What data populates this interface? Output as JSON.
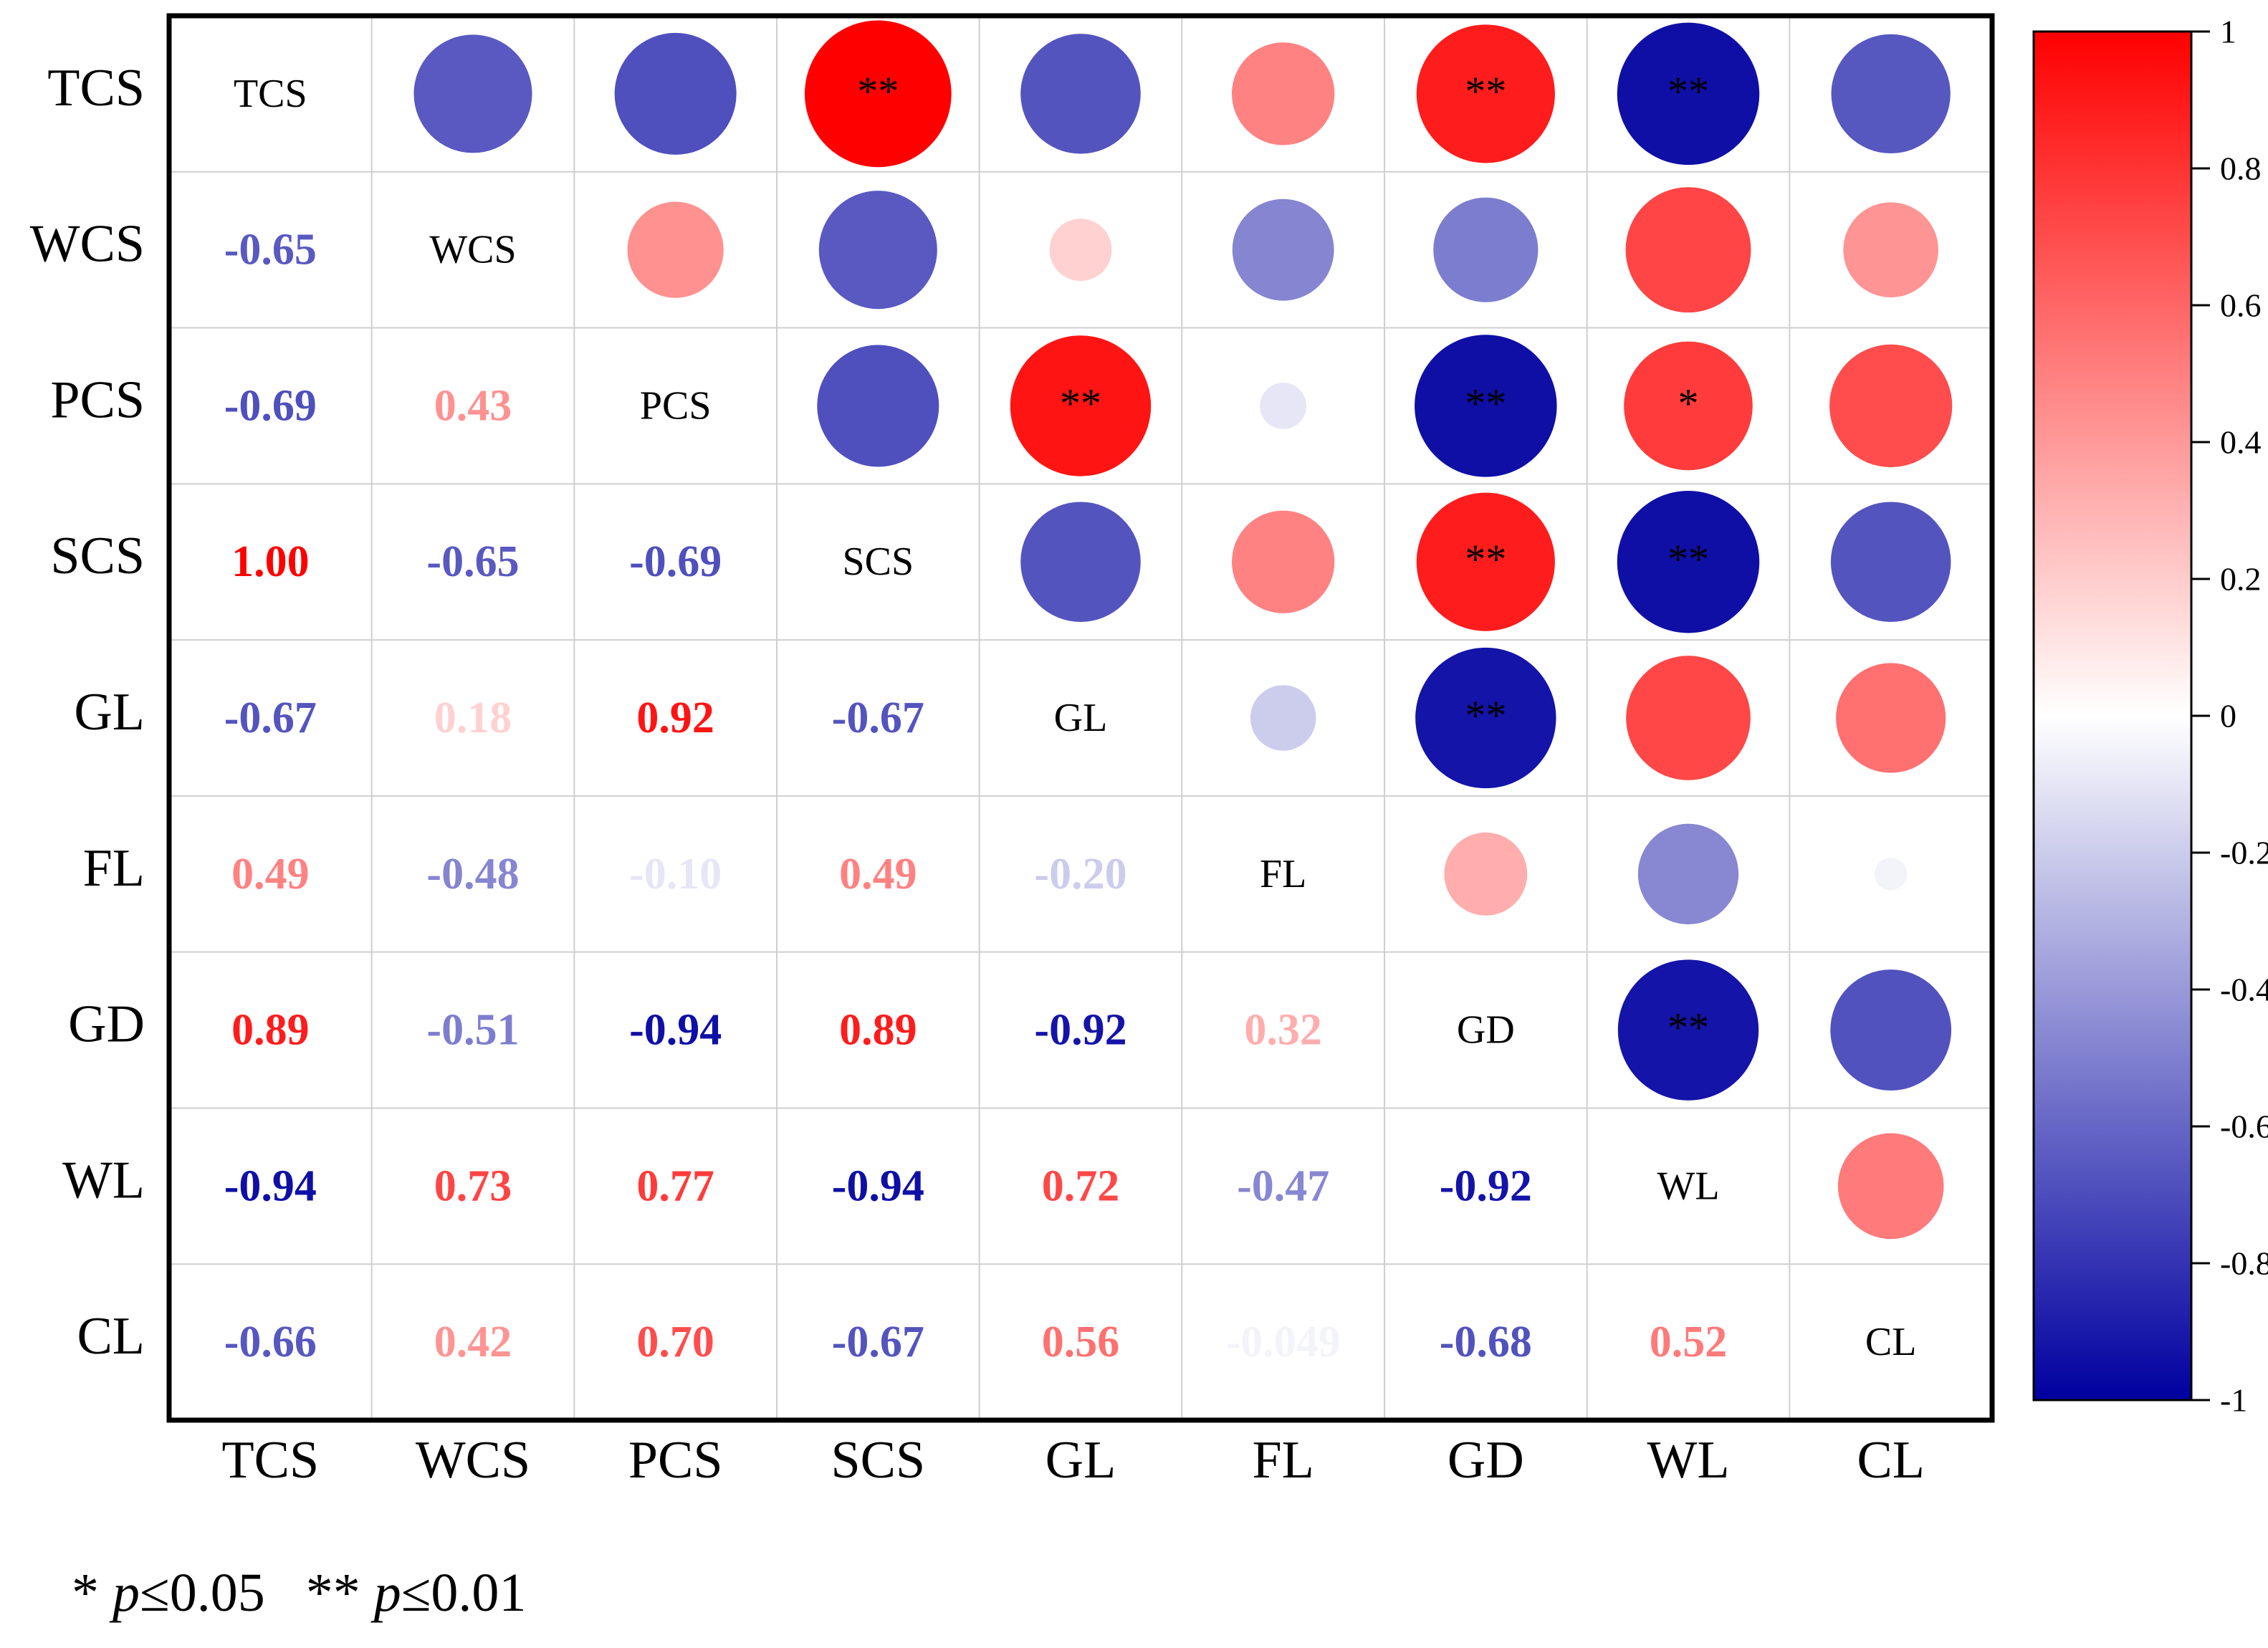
{
  "chart_data": {
    "type": "heatmap",
    "style": "correlation-matrix",
    "variables": [
      "TCS",
      "WCS",
      "PCS",
      "SCS",
      "GL",
      "FL",
      "GD",
      "WL",
      "CL"
    ],
    "lower_labels": [
      [
        null,
        null,
        null,
        null,
        null,
        null,
        null,
        null,
        null
      ],
      [
        "-0.65",
        null,
        null,
        null,
        null,
        null,
        null,
        null,
        null
      ],
      [
        "-0.69",
        "0.43",
        null,
        null,
        null,
        null,
        null,
        null,
        null
      ],
      [
        "1.00",
        "-0.65",
        "-0.69",
        null,
        null,
        null,
        null,
        null,
        null
      ],
      [
        "-0.67",
        "0.18",
        "0.92",
        "-0.67",
        null,
        null,
        null,
        null,
        null
      ],
      [
        "0.49",
        "-0.48",
        "-0.10",
        "0.49",
        "-0.20",
        null,
        null,
        null,
        null
      ],
      [
        "0.89",
        "-0.51",
        "-0.94",
        "0.89",
        "-0.92",
        "0.32",
        null,
        null,
        null
      ],
      [
        "-0.94",
        "0.73",
        "0.77",
        "-0.94",
        "0.72",
        "-0.47",
        "-0.92",
        null,
        null
      ],
      [
        "-0.66",
        "0.42",
        "0.70",
        "-0.67",
        "0.56",
        "-0.049",
        "-0.68",
        "0.52",
        null
      ]
    ],
    "significance": [
      [
        "",
        "",
        "",
        "**",
        "",
        "",
        "**",
        "**",
        ""
      ],
      [
        "",
        "",
        "",
        "",
        "",
        "",
        "",
        "",
        ""
      ],
      [
        "",
        "",
        "",
        "",
        "**",
        "",
        "**",
        "*",
        ""
      ],
      [
        "**",
        "",
        "",
        "",
        "",
        "",
        "**",
        "**",
        ""
      ],
      [
        "",
        "",
        "**",
        "",
        "",
        "",
        "**",
        "",
        ""
      ],
      [
        "",
        "",
        "",
        "",
        "",
        "",
        "",
        "",
        ""
      ],
      [
        "**",
        "",
        "**",
        "**",
        "**",
        "",
        "",
        "**",
        ""
      ],
      [
        "**",
        "",
        "*",
        "**",
        "",
        "",
        "**",
        "",
        ""
      ],
      [
        "",
        "",
        "",
        "",
        "",
        "",
        "",
        "",
        ""
      ]
    ],
    "colorbar": {
      "min": -1,
      "max": 1,
      "ticks": [
        "1",
        "0.8",
        "0.6",
        "0.4",
        "0.2",
        "0",
        "-0.2",
        "-0.4",
        "-0.6",
        "-0.8",
        "-1"
      ],
      "colors": {
        "negative": "#0000a0",
        "middle": "#ffffff",
        "positive": "#ff0000"
      }
    },
    "xlabel": "",
    "ylabel": "",
    "title": ""
  },
  "footnote": {
    "star1": "*",
    "p1": "p",
    "thr1": "≤0.05",
    "star2": "**",
    "p2": "p",
    "thr2": "≤0.01"
  }
}
